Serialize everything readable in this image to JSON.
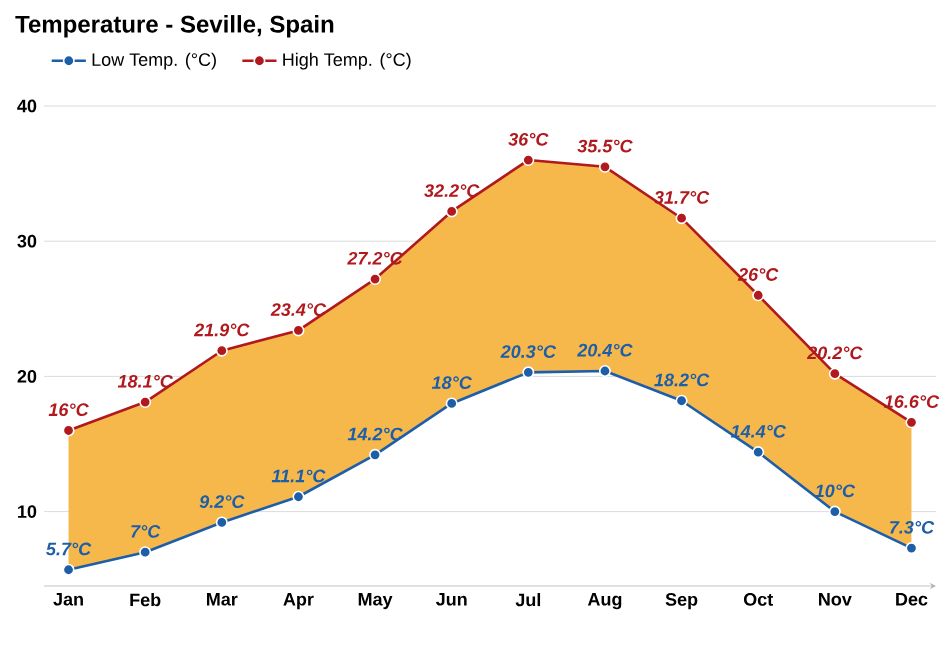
{
  "chart_data": {
    "type": "line",
    "title": "Temperature - Seville, Spain",
    "categories": [
      "Jan",
      "Feb",
      "Mar",
      "Apr",
      "May",
      "Jun",
      "Jul",
      "Aug",
      "Sep",
      "Oct",
      "Nov",
      "Dec"
    ],
    "series": [
      {
        "name": "Low Temp. (°C)",
        "color": "#1d5ea8",
        "values": [
          5.7,
          7,
          9.2,
          11.1,
          14.2,
          18,
          20.3,
          20.4,
          18.2,
          14.4,
          10,
          7.3
        ],
        "value_labels": [
          "5.7°C",
          "7°C",
          "9.2°C",
          "11.1°C",
          "14.2°C",
          "18°C",
          "20.3°C",
          "20.4°C",
          "18.2°C",
          "14.4°C",
          "10°C",
          "7.3°C"
        ]
      },
      {
        "name": "High Temp. (°C)",
        "color": "#b0191e",
        "values": [
          16,
          18.1,
          21.9,
          23.4,
          27.2,
          32.2,
          36,
          35.5,
          31.7,
          26,
          20.2,
          16.6
        ],
        "value_labels": [
          "16°C",
          "18.1°C",
          "21.9°C",
          "23.4°C",
          "27.2°C",
          "32.2°C",
          "36°C",
          "35.5°C",
          "31.7°C",
          "26°C",
          "20.2°C",
          "16.6°C"
        ],
        "lower": [
          5.7,
          7,
          9.2,
          11.1,
          14.2,
          18,
          20.3,
          20.4,
          18.2,
          14.4,
          10,
          7.3
        ],
        "upper": [
          16,
          18.1,
          21.9,
          23.4,
          27.2,
          32.2,
          36,
          35.5,
          31.7,
          26,
          20.2,
          16.6
        ]
      }
    ],
    "ylim": [
      4.5,
      40
    ],
    "yticks": [
      10,
      20,
      30,
      40
    ],
    "grid": "y",
    "legend": "top left",
    "marker": "circle",
    "line_style": "solid"
  }
}
